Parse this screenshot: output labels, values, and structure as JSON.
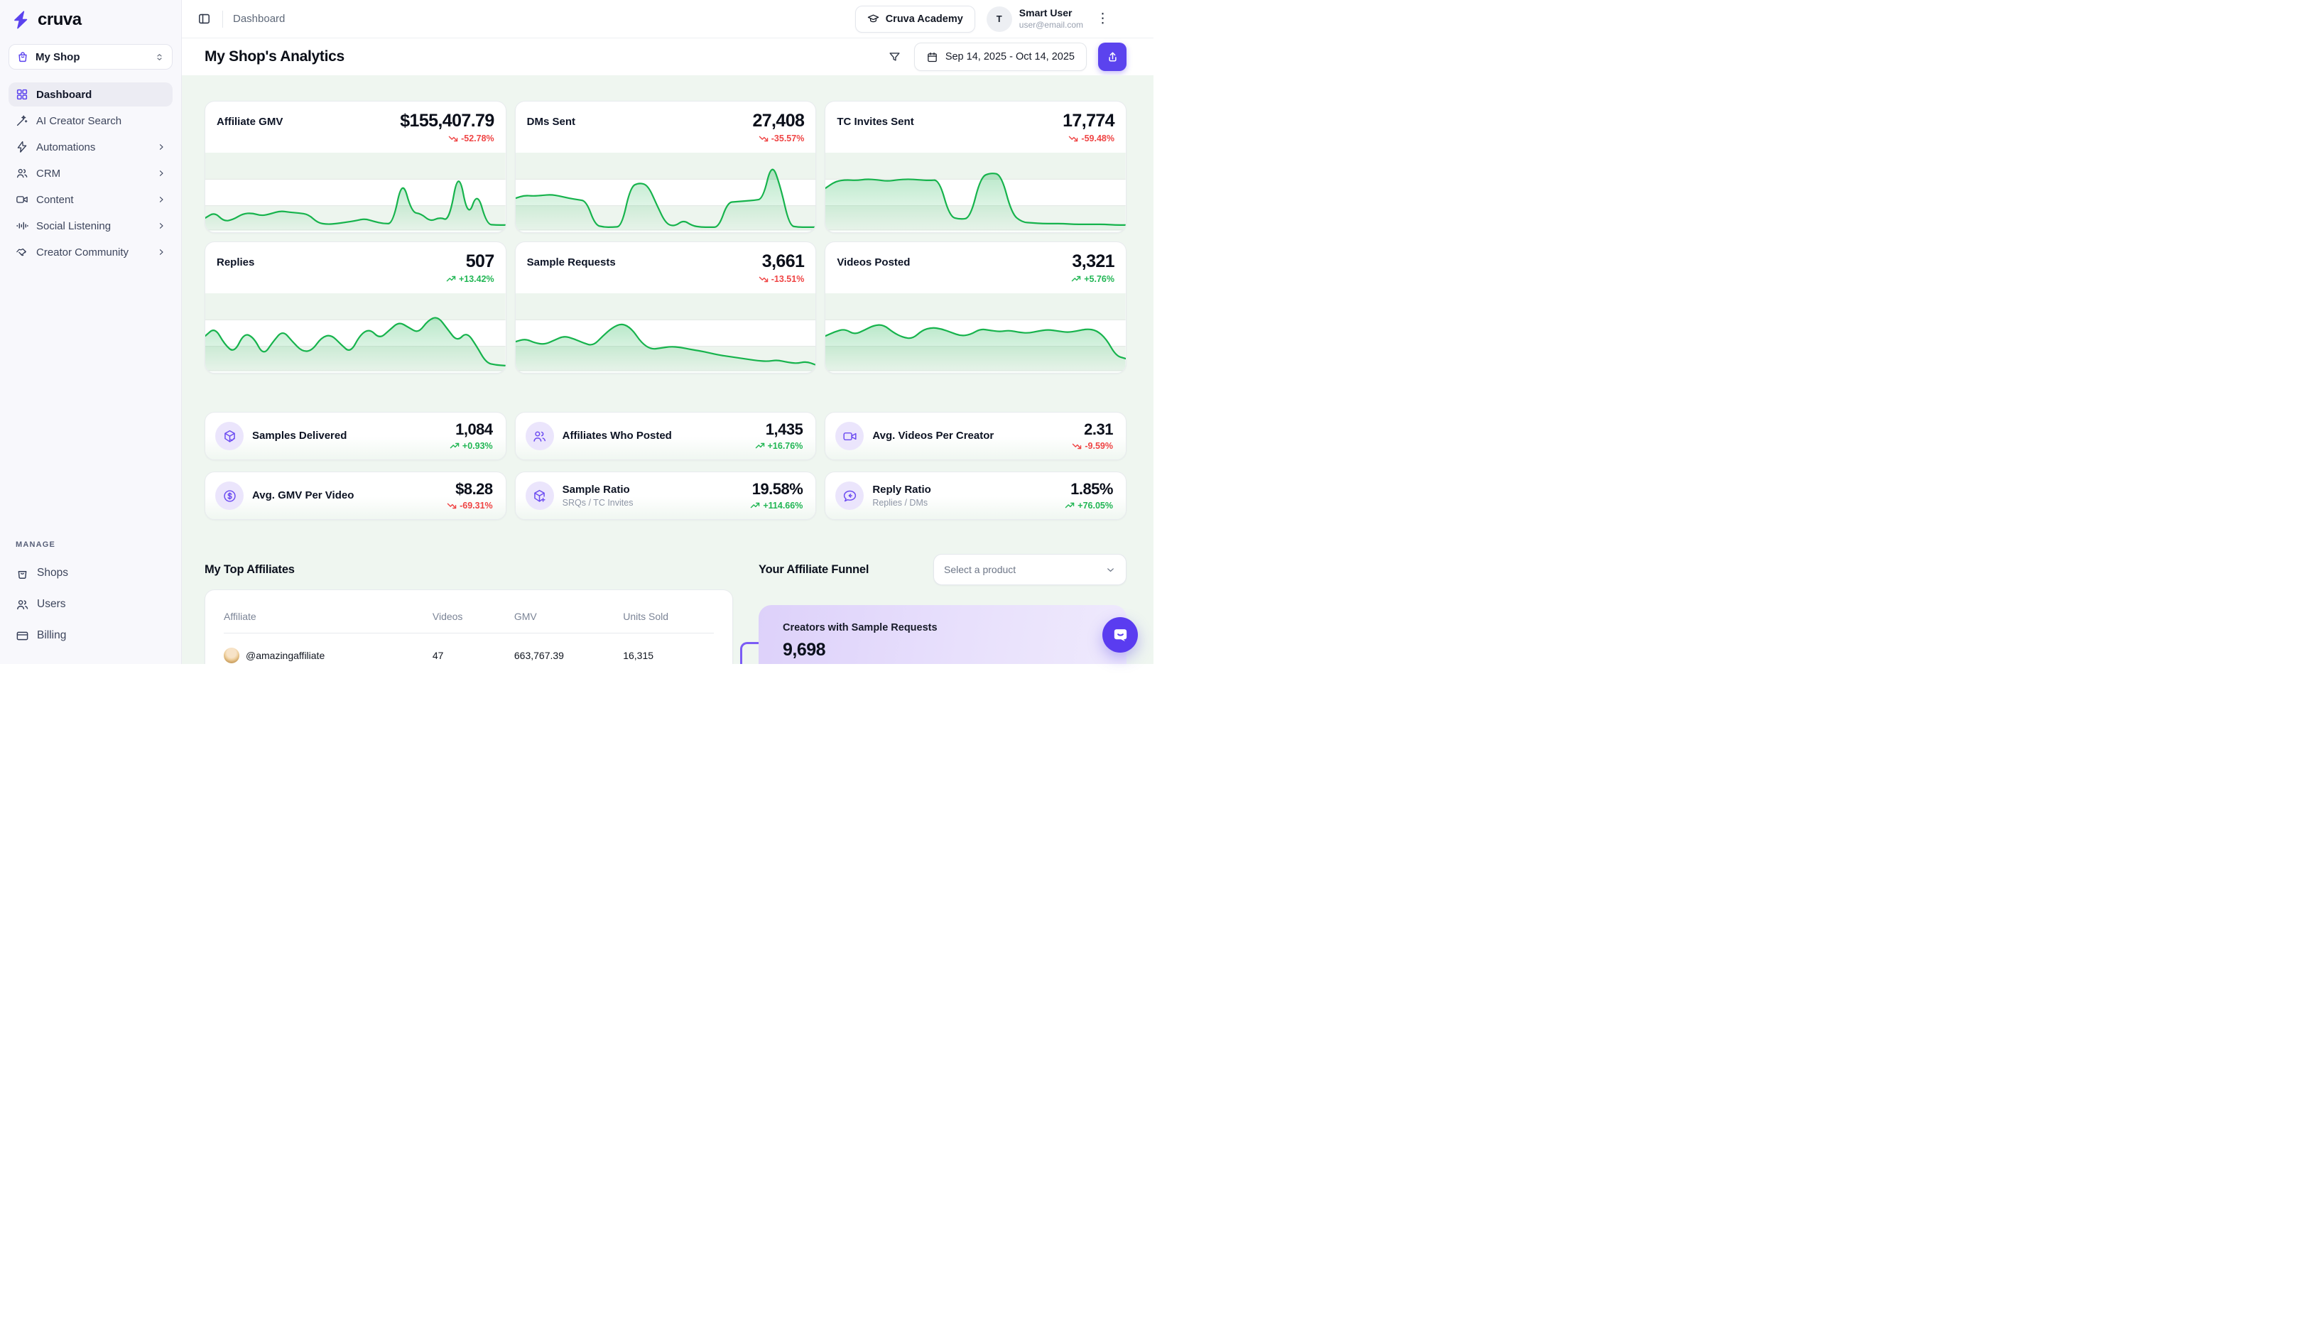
{
  "brand": {
    "name": "cruva"
  },
  "sidebar": {
    "shop": {
      "label": "My Shop"
    },
    "nav": [
      {
        "label": "Dashboard",
        "icon": "dashboard-grid-icon",
        "active": true,
        "chevron": false
      },
      {
        "label": "AI Creator Search",
        "icon": "magic-wand-icon",
        "active": false,
        "chevron": false
      },
      {
        "label": "Automations",
        "icon": "lightning-icon",
        "active": false,
        "chevron": true
      },
      {
        "label": "CRM",
        "icon": "users-icon",
        "active": false,
        "chevron": true
      },
      {
        "label": "Content",
        "icon": "video-camera-icon",
        "active": false,
        "chevron": true
      },
      {
        "label": "Social Listening",
        "icon": "audio-waveform-icon",
        "active": false,
        "chevron": true
      },
      {
        "label": "Creator Community",
        "icon": "handshake-icon",
        "active": false,
        "chevron": true
      }
    ],
    "manage": {
      "label": "MANAGE",
      "items": [
        {
          "label": "Shops",
          "icon": "shop-bag-icon"
        },
        {
          "label": "Users",
          "icon": "users-icon"
        },
        {
          "label": "Billing",
          "icon": "credit-card-icon"
        }
      ]
    }
  },
  "header": {
    "breadcrumb": "Dashboard",
    "academy": {
      "label": "Cruva Academy"
    },
    "user": {
      "initial": "T",
      "name": "Smart User",
      "email": "user@email.com"
    }
  },
  "toolbar": {
    "title": "My Shop's Analytics",
    "date_range": "Sep 14, 2025 - Oct 14, 2025"
  },
  "chart_data": [
    {
      "type": "area",
      "title": "Affiliate GMV",
      "value": "$155,407.79",
      "delta": "-52.78%",
      "direction": "down",
      "points": [
        16,
        24,
        11,
        14,
        22,
        23,
        19,
        22,
        26,
        24,
        23,
        21,
        9,
        7,
        8,
        10,
        12,
        15,
        11,
        8,
        8,
        72,
        24,
        22,
        11,
        17,
        12,
        86,
        15,
        54,
        7,
        6,
        6
      ]
    },
    {
      "type": "area",
      "title": "DMs Sent",
      "value": "27,408",
      "delta": "-35.57%",
      "direction": "down",
      "points": [
        44,
        48,
        47,
        48,
        49,
        47,
        44,
        42,
        40,
        6,
        3,
        3,
        4,
        60,
        66,
        62,
        34,
        8,
        4,
        13,
        5,
        3,
        3,
        3,
        38,
        39,
        40,
        41,
        43,
        95,
        60,
        5,
        3,
        3,
        3
      ]
    },
    {
      "type": "area",
      "title": "TC Invites Sent",
      "value": "17,774",
      "delta": "-59.48%",
      "direction": "down",
      "points": [
        58,
        68,
        70,
        69,
        71,
        70,
        68,
        70,
        71,
        70,
        69,
        70,
        18,
        14,
        16,
        74,
        80,
        77,
        22,
        10,
        9,
        8,
        8,
        8,
        7,
        7,
        7,
        7,
        6,
        6
      ]
    },
    {
      "type": "area",
      "title": "Replies",
      "value": "507",
      "delta": "+13.42%",
      "direction": "up",
      "points": [
        48,
        60,
        36,
        24,
        52,
        46,
        20,
        40,
        56,
        40,
        26,
        27,
        46,
        50,
        36,
        24,
        50,
        58,
        44,
        56,
        68,
        60,
        52,
        70,
        76,
        58,
        40,
        54,
        34,
        10,
        7,
        6
      ]
    },
    {
      "type": "area",
      "title": "Sample Requests",
      "value": "3,661",
      "delta": "-13.51%",
      "direction": "down",
      "points": [
        40,
        44,
        38,
        36,
        42,
        48,
        44,
        38,
        34,
        48,
        60,
        66,
        58,
        38,
        29,
        31,
        33,
        32,
        29,
        27,
        24,
        21,
        19,
        17,
        15,
        13,
        12,
        14,
        11,
        9,
        12,
        7
      ]
    },
    {
      "type": "area",
      "title": "Videos Posted",
      "value": "3,321",
      "delta": "+5.76%",
      "direction": "up",
      "points": [
        48,
        54,
        58,
        50,
        56,
        63,
        64,
        53,
        46,
        44,
        56,
        60,
        58,
        53,
        48,
        50,
        58,
        56,
        54,
        56,
        53,
        52,
        55,
        57,
        55,
        53,
        55,
        58,
        56,
        44,
        20,
        16
      ]
    }
  ],
  "stats": [
    {
      "icon": "package-check-icon",
      "label": "Samples Delivered",
      "sublabel": "",
      "value": "1,084",
      "delta": "+0.93%",
      "direction": "up"
    },
    {
      "icon": "users-icon",
      "label": "Affiliates Who Posted",
      "sublabel": "",
      "value": "1,435",
      "delta": "+16.76%",
      "direction": "up"
    },
    {
      "icon": "video-camera-icon",
      "label": "Avg. Videos Per Creator",
      "sublabel": "",
      "value": "2.31",
      "delta": "-9.59%",
      "direction": "down"
    },
    {
      "icon": "dollar-coin-icon",
      "label": "Avg. GMV Per Video",
      "sublabel": "",
      "value": "$8.28",
      "delta": "-69.31%",
      "direction": "down"
    },
    {
      "icon": "package-plus-icon",
      "label": "Sample Ratio",
      "sublabel": "SRQs / TC Invites",
      "value": "19.58%",
      "delta": "+114.66%",
      "direction": "up"
    },
    {
      "icon": "chat-reply-icon",
      "label": "Reply Ratio",
      "sublabel": "Replies / DMs",
      "value": "1.85%",
      "delta": "+76.05%",
      "direction": "up"
    }
  ],
  "top_affiliates": {
    "title": "My Top Affiliates",
    "columns": [
      "Affiliate",
      "Videos",
      "GMV",
      "Units Sold"
    ],
    "rows": [
      {
        "affiliate": "@amazingaffiliate",
        "videos": "47",
        "gmv": "663,767.39",
        "units_sold": "16,315"
      }
    ]
  },
  "funnel": {
    "title": "Your Affiliate Funnel",
    "product_select": {
      "placeholder": "Select a product"
    },
    "stages": [
      {
        "label": "Creators with Sample Requests",
        "value": "9,698"
      }
    ]
  },
  "colors": {
    "accent_purple": "#5b43ee",
    "icon_purple": "#6c4cf1",
    "lavender_badge": "#ebe5fc",
    "line_green": "#16b34c",
    "delta_green": "#21b654",
    "delta_red": "#ef4444",
    "content_background": "#eff6f0",
    "funnel_card": "#ddd1fa"
  }
}
